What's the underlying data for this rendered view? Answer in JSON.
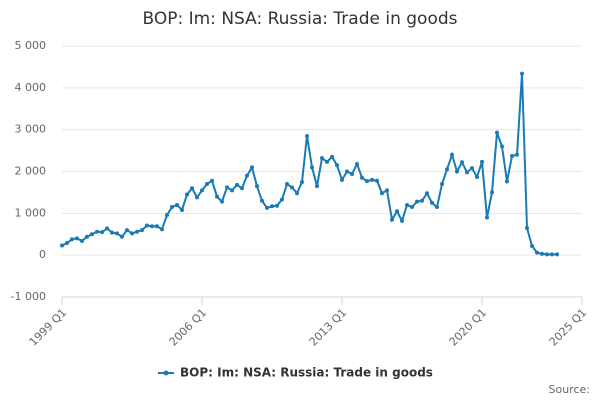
{
  "chart_data": {
    "type": "line",
    "title": "BOP: Im: NSA: Russia: Trade in goods",
    "source": "Source:",
    "x": [
      1999,
      1999.25,
      1999.5,
      1999.75,
      2000,
      2000.25,
      2000.5,
      2000.75,
      2001,
      2001.25,
      2001.5,
      2001.75,
      2002,
      2002.25,
      2002.5,
      2002.75,
      2003,
      2003.25,
      2003.5,
      2003.75,
      2004,
      2004.25,
      2004.5,
      2004.75,
      2005,
      2005.25,
      2005.5,
      2005.75,
      2006,
      2006.25,
      2006.5,
      2006.75,
      2007,
      2007.25,
      2007.5,
      2007.75,
      2008,
      2008.25,
      2008.5,
      2008.75,
      2009,
      2009.25,
      2009.5,
      2009.75,
      2010,
      2010.25,
      2010.5,
      2010.75,
      2011,
      2011.25,
      2011.5,
      2011.75,
      2012,
      2012.25,
      2012.5,
      2012.75,
      2013,
      2013.25,
      2013.5,
      2013.75,
      2014,
      2014.25,
      2014.5,
      2014.75,
      2015,
      2015.25,
      2015.5,
      2015.75,
      2016,
      2016.25,
      2016.5,
      2016.75,
      2017,
      2017.25,
      2017.5,
      2017.75,
      2018,
      2018.25,
      2018.5,
      2018.75,
      2019,
      2019.25,
      2019.5,
      2019.75,
      2020,
      2020.25,
      2020.5,
      2020.75,
      2021,
      2021.25,
      2021.5,
      2021.75,
      2022,
      2022.25,
      2022.5,
      2022.75,
      2023,
      2023.25,
      2023.5,
      2023.75
    ],
    "series": [
      {
        "name": "BOP: Im: NSA: Russia: Trade in goods",
        "color": "#1a7ab5",
        "values": [
          230,
          290,
          380,
          400,
          340,
          440,
          500,
          560,
          550,
          640,
          540,
          520,
          440,
          600,
          520,
          560,
          600,
          710,
          690,
          690,
          620,
          960,
          1150,
          1200,
          1080,
          1450,
          1600,
          1380,
          1550,
          1700,
          1780,
          1400,
          1280,
          1620,
          1550,
          1680,
          1600,
          1900,
          2100,
          1650,
          1300,
          1130,
          1170,
          1180,
          1330,
          1700,
          1620,
          1480,
          1750,
          2850,
          2100,
          1650,
          2320,
          2230,
          2350,
          2150,
          1800,
          2000,
          1940,
          2180,
          1850,
          1770,
          1800,
          1780,
          1480,
          1550,
          850,
          1050,
          820,
          1200,
          1150,
          1280,
          1300,
          1480,
          1250,
          1150,
          1700,
          2050,
          2400,
          2000,
          2220,
          1980,
          2080,
          1870,
          2230,
          900,
          1500,
          2930,
          2600,
          1760,
          2370,
          2400,
          4340,
          650,
          220,
          60,
          30,
          20,
          20,
          20
        ]
      }
    ],
    "xlim": [
      1999,
      2025
    ],
    "xticks": [
      {
        "value": 1999,
        "label": "1999 Q1"
      },
      {
        "value": 2006,
        "label": "2006 Q1"
      },
      {
        "value": 2013,
        "label": "2013 Q1"
      },
      {
        "value": 2020,
        "label": "2020 Q1"
      },
      {
        "value": 2025,
        "label": "2025 Q1"
      }
    ],
    "ylim": [
      -1000,
      5000
    ],
    "yticks": [
      {
        "value": -1000,
        "label": "-1 000"
      },
      0,
      {
        "value": 1000,
        "label": "1 000"
      },
      {
        "value": 2000,
        "label": "2 000"
      },
      {
        "value": 3000,
        "label": "3 000"
      },
      {
        "value": 4000,
        "label": "4 000"
      },
      {
        "value": 5000,
        "label": "5 000"
      }
    ],
    "grid": true,
    "legend": "bottom"
  }
}
